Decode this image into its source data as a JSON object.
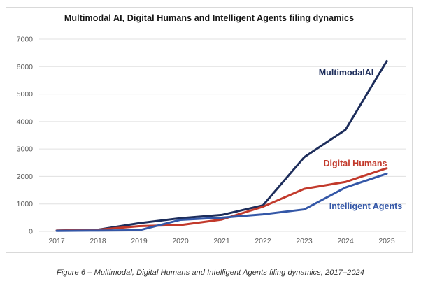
{
  "page": {
    "caption": "Figure 6 – Multimodal, Digital Humans and Intelligent Agents filing dynamics, 2017–2024"
  },
  "chart_data": {
    "type": "line",
    "title": "Multimodal AI, Digital Humans and Intelligent Agents filing dynamics",
    "categories": [
      "2017",
      "2018",
      "2019",
      "2020",
      "2021",
      "2022",
      "2023",
      "2024",
      "2025"
    ],
    "series": [
      {
        "name": "MultimodalAI",
        "color": "#1d2d5b",
        "values": [
          30,
          60,
          300,
          480,
          600,
          950,
          2700,
          3700,
          6200
        ],
        "label_xy": [
          486,
          97
        ]
      },
      {
        "name": "Digital Humans",
        "color": "#c2392b",
        "values": [
          30,
          60,
          190,
          230,
          430,
          900,
          1550,
          1800,
          2300
        ],
        "label_xy": [
          499,
          227
        ]
      },
      {
        "name": "Intelligent Agents",
        "color": "#3457a7",
        "values": [
          20,
          30,
          40,
          420,
          500,
          620,
          800,
          1600,
          2100
        ],
        "label_xy": [
          514,
          288
        ]
      }
    ],
    "ylim": [
      0,
      7000
    ],
    "ytick_step": 1000,
    "xlabel": "",
    "ylabel": "",
    "grid": true,
    "legend": "inline-labels"
  }
}
